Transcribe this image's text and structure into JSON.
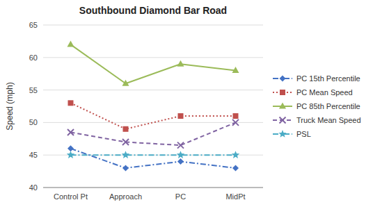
{
  "chart_data": {
    "type": "line",
    "title": "Southbound Diamond Bar Road",
    "ylabel": "Speed (mph)",
    "categories": [
      "Control Pt",
      "Approach",
      "PC",
      "MidPt"
    ],
    "ylim": [
      40,
      65
    ],
    "yticks": [
      40,
      45,
      50,
      55,
      60,
      65
    ],
    "grid": true,
    "legend": "right",
    "series": [
      {
        "name": "PC 15th Percentile",
        "color": "#4472C4",
        "marker": "diamond",
        "line_style": "dashdot",
        "values": [
          46.0,
          43.0,
          44.0,
          43.0
        ]
      },
      {
        "name": "PC Mean Speed",
        "color": "#C0504D",
        "marker": "square",
        "line_style": "dotted",
        "values": [
          53.0,
          49.0,
          51.0,
          51.0
        ]
      },
      {
        "name": "PC 85th Percentile",
        "color": "#9BBB59",
        "marker": "triangle",
        "line_style": "solid",
        "values": [
          62.0,
          56.0,
          59.0,
          58.0
        ]
      },
      {
        "name": "Truck Mean Speed",
        "color": "#8064A2",
        "marker": "x",
        "line_style": "dashed",
        "values": [
          48.5,
          47.0,
          46.5,
          50.0
        ]
      },
      {
        "name": "PSL",
        "color": "#4BACC6",
        "marker": "star",
        "line_style": "dashdot",
        "values": [
          45.0,
          45.0,
          45.0,
          45.0
        ]
      }
    ]
  }
}
